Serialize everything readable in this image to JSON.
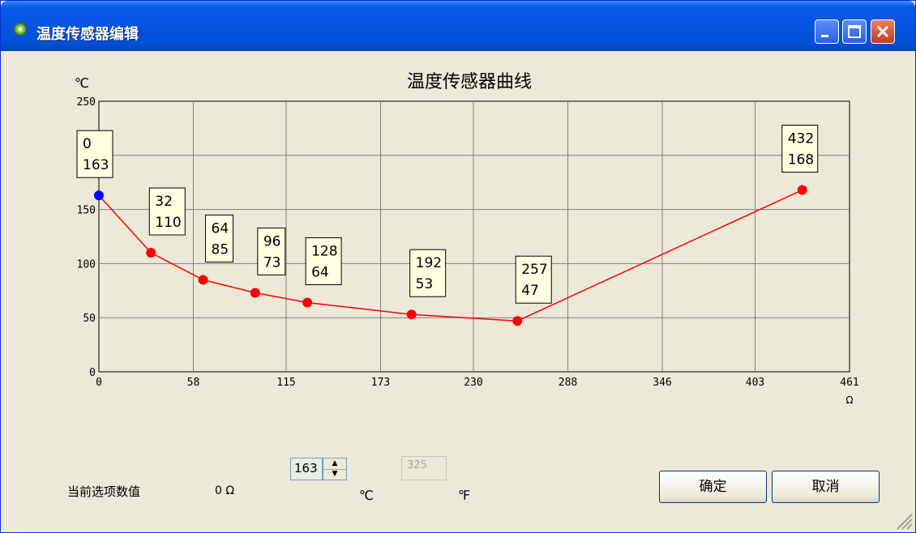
{
  "window": {
    "title": "温度传感器编辑"
  },
  "chart_data": {
    "type": "line",
    "title": "温度传感器曲线",
    "ylabel": "℃",
    "xlabel": "Ω",
    "ylim": [
      0,
      250
    ],
    "xlim": [
      0,
      461
    ],
    "x_ticks": [
      "0",
      "58",
      "115",
      "173",
      "230",
      "288",
      "346",
      "403",
      "461"
    ],
    "y_ticks": [
      "0",
      "50",
      "100",
      "150",
      "200",
      "250"
    ],
    "grid": true,
    "series": [
      {
        "values": [
          {
            "x": 0,
            "y": 163,
            "label_x": "0",
            "label_y": "163",
            "selected": true
          },
          {
            "x": 32,
            "y": 110,
            "label_x": "32",
            "label_y": "110"
          },
          {
            "x": 64,
            "y": 85,
            "label_x": "64",
            "label_y": "85"
          },
          {
            "x": 96,
            "y": 73,
            "label_x": "96",
            "label_y": "73"
          },
          {
            "x": 128,
            "y": 64,
            "label_x": "128",
            "label_y": "64"
          },
          {
            "x": 192,
            "y": 53,
            "label_x": "192",
            "label_y": "53"
          },
          {
            "x": 257,
            "y": 47,
            "label_x": "257",
            "label_y": "47"
          },
          {
            "x": 432,
            "y": 168,
            "label_x": "432",
            "label_y": "168"
          }
        ]
      }
    ],
    "colors": {
      "line": "#ff0000",
      "point": "#ff0000",
      "selected_point": "#0000ff",
      "grid": "#808080",
      "label_bg": "#ffffe1"
    }
  },
  "controls": {
    "current_label": "当前选项数值",
    "ohm_value": "0 Ω",
    "celsius_value": "163",
    "celsius_unit": "℃",
    "fahrenheit_value": "325",
    "fahrenheit_unit": "℉",
    "ok_label": "确定",
    "cancel_label": "取消"
  }
}
